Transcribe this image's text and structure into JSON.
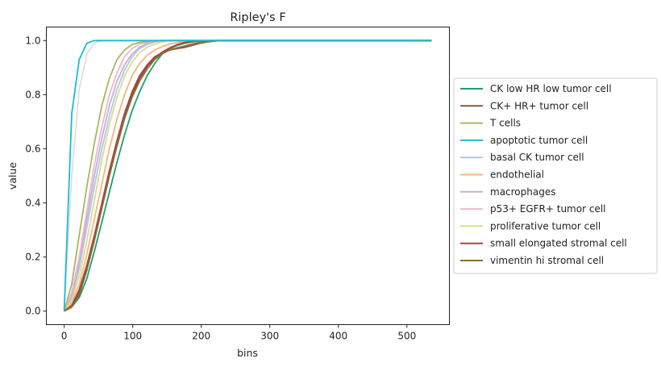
{
  "chart_data": {
    "type": "line",
    "title": "Ripley's F",
    "xlabel": "bins",
    "ylabel": "value",
    "xlim": [
      -26,
      562
    ],
    "ylim": [
      -0.05,
      1.05
    ],
    "xticks": [
      0,
      100,
      200,
      300,
      400,
      500
    ],
    "yticks": [
      0.0,
      0.2,
      0.4,
      0.6,
      0.8,
      1.0
    ],
    "xtick_labels": [
      "0",
      "100",
      "200",
      "300",
      "400",
      "500"
    ],
    "ytick_labels": [
      "0.0",
      "0.2",
      "0.4",
      "0.6",
      "0.8",
      "1.0"
    ],
    "grid": false,
    "legend_position": "right-outside",
    "x": [
      0,
      11,
      22,
      33,
      44,
      55,
      66,
      77,
      88,
      99,
      110,
      121,
      132,
      143,
      154,
      165,
      176,
      187,
      198,
      209,
      220,
      231,
      242,
      253,
      264,
      536
    ],
    "series": [
      {
        "name": "CK low HR low tumor cell",
        "color": "#1b9e77",
        "values": [
          0,
          0.015,
          0.05,
          0.12,
          0.22,
          0.33,
          0.44,
          0.55,
          0.65,
          0.74,
          0.81,
          0.87,
          0.915,
          0.95,
          0.97,
          0.982,
          0.99,
          0.995,
          0.998,
          0.999,
          1,
          1,
          1,
          1,
          1,
          1
        ]
      },
      {
        "name": "CK+ HR+ tumor cell",
        "color": "#8c564b",
        "values": [
          0,
          0.02,
          0.08,
          0.17,
          0.28,
          0.4,
          0.52,
          0.63,
          0.73,
          0.81,
          0.87,
          0.91,
          0.94,
          0.955,
          0.965,
          0.97,
          0.975,
          0.982,
          0.99,
          0.995,
          0.998,
          1,
          1,
          1,
          1,
          1
        ]
      },
      {
        "name": "T cells",
        "color": "#a6b85b",
        "values": [
          0,
          0.1,
          0.28,
          0.46,
          0.62,
          0.76,
          0.86,
          0.93,
          0.965,
          0.985,
          0.993,
          0.997,
          1,
          1,
          1,
          1,
          1,
          1,
          1,
          1,
          1,
          1,
          1,
          1,
          1,
          1
        ]
      },
      {
        "name": "apoptotic tumor cell",
        "color": "#17becf",
        "values": [
          0,
          0.73,
          0.93,
          0.99,
          1,
          1,
          1,
          1,
          1,
          1,
          1,
          1,
          1,
          1,
          1,
          1,
          1,
          1,
          1,
          1,
          1,
          1,
          1,
          1,
          1,
          1
        ]
      },
      {
        "name": "basal CK tumor cell",
        "color": "#aec7e8",
        "values": [
          0,
          0.05,
          0.16,
          0.31,
          0.46,
          0.6,
          0.72,
          0.82,
          0.89,
          0.94,
          0.97,
          0.985,
          0.995,
          1,
          1,
          1,
          1,
          1,
          1,
          1,
          1,
          1,
          1,
          1,
          1,
          1
        ]
      },
      {
        "name": "endothelial",
        "color": "#f4b77e",
        "values": [
          0,
          0.03,
          0.1,
          0.21,
          0.34,
          0.47,
          0.6,
          0.71,
          0.8,
          0.87,
          0.915,
          0.945,
          0.965,
          0.978,
          0.987,
          0.993,
          0.996,
          0.998,
          1,
          1,
          1,
          1,
          1,
          1,
          1,
          1
        ]
      },
      {
        "name": "macrophages",
        "color": "#c5b0d5",
        "values": [
          0,
          0.06,
          0.18,
          0.34,
          0.5,
          0.64,
          0.76,
          0.85,
          0.91,
          0.95,
          0.975,
          0.99,
          0.996,
          1,
          1,
          1,
          1,
          1,
          1,
          1,
          1,
          1,
          1,
          1,
          1,
          1
        ]
      },
      {
        "name": "p53+ EGFR+ tumor cell",
        "color": "#f0b6d0",
        "values": [
          0,
          0.07,
          0.2,
          0.37,
          0.54,
          0.68,
          0.8,
          0.88,
          0.94,
          0.97,
          0.987,
          0.995,
          1,
          1,
          1,
          1,
          1,
          1,
          1,
          1,
          1,
          1,
          1,
          1,
          1,
          1
        ]
      },
      {
        "name": "proliferative tumor cell",
        "color": "#dbdb8d",
        "values": [
          0,
          0.04,
          0.13,
          0.26,
          0.41,
          0.56,
          0.69,
          0.79,
          0.87,
          0.92,
          0.955,
          0.975,
          0.987,
          0.995,
          1,
          1,
          1,
          1,
          1,
          1,
          1,
          1,
          1,
          1,
          1,
          1
        ]
      },
      {
        "name": "small elongated stromal cell",
        "color": "#a9413f",
        "values": [
          0,
          0.02,
          0.07,
          0.16,
          0.27,
          0.39,
          0.51,
          0.62,
          0.72,
          0.8,
          0.86,
          0.905,
          0.935,
          0.957,
          0.973,
          0.985,
          0.993,
          0.997,
          1,
          1,
          1,
          1,
          1,
          1,
          1,
          1
        ]
      },
      {
        "name": "vimentin hi stromal cell",
        "color": "#8c6d31",
        "values": [
          0,
          0.015,
          0.06,
          0.15,
          0.26,
          0.38,
          0.5,
          0.61,
          0.71,
          0.79,
          0.85,
          0.895,
          0.93,
          0.952,
          0.965,
          0.973,
          0.98,
          0.987,
          0.993,
          0.997,
          1,
          1,
          1,
          1,
          1,
          1
        ]
      }
    ],
    "extra_lines": [
      {
        "color": "#d9d9d9",
        "x": [
          0,
          11,
          22,
          33,
          44,
          55,
          66
        ],
        "values": [
          0,
          0.5,
          0.82,
          0.95,
          0.99,
          1,
          1
        ]
      }
    ]
  }
}
